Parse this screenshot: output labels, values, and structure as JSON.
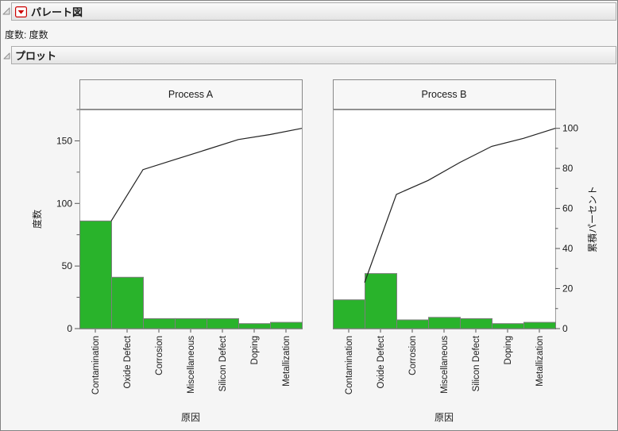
{
  "outline": {
    "pareto": {
      "title": "パレート図"
    },
    "freq_note": "度数: 度数",
    "plot": {
      "title": "プロット"
    }
  },
  "plot_labels": {
    "x_axis_title": "原因",
    "y_left_title": "度数",
    "y_right_title": "累積パーセント"
  },
  "colors": {
    "bar_fill": "#29b32b",
    "bar_stroke": "#7f7f7f",
    "cumulative_line": "#222222",
    "frame_stroke": "#9b9b9b",
    "plot_bg": "#ffffff",
    "title_box_fill": "#f7f7f7",
    "title_box_stroke": "#888888",
    "tick_color": "#555555",
    "text_color": "#1a1a1a",
    "hotspot_red": "#cc0000"
  },
  "percent_scale": {
    "count_at_100pct": 160
  },
  "chart_data": [
    {
      "type": "bar",
      "title": "Process A",
      "categories": [
        "Contamination",
        "Oxide Defect",
        "Corrosion",
        "Miscellaneous",
        "Silicon Defect",
        "Doping",
        "Metallization"
      ],
      "values": [
        86,
        41,
        8,
        8,
        8,
        4,
        5
      ],
      "cumulative_percent": [
        53.75,
        79.38,
        84.38,
        89.38,
        94.38,
        96.88,
        100
      ],
      "xlabel": "原因",
      "ylabel": "度数",
      "y2label": "累積パーセント",
      "ylim": [
        0,
        175
      ],
      "yticks": [
        0,
        50,
        100,
        150
      ],
      "yticks_minor": [
        25,
        75,
        125,
        175
      ],
      "y2lim": [
        0,
        109.4
      ],
      "y2ticks": [
        0,
        20,
        40,
        60,
        80,
        100
      ],
      "y2ticks_minor": [
        10,
        30,
        50,
        70,
        90
      ],
      "grid": false,
      "legend": false
    },
    {
      "type": "bar",
      "title": "Process B",
      "categories": [
        "Contamination",
        "Oxide Defect",
        "Corrosion",
        "Miscellaneous",
        "Silicon Defect",
        "Doping",
        "Metallization"
      ],
      "values": [
        23,
        44,
        7,
        9,
        8,
        4,
        5
      ],
      "cumulative_percent": [
        23,
        67,
        74,
        83,
        91,
        95,
        100
      ],
      "xlabel": "原因",
      "ylabel": "度数",
      "y2label": "累積パーセント",
      "ylim": [
        0,
        175
      ],
      "yticks": [
        0,
        50,
        100,
        150
      ],
      "yticks_minor": [
        25,
        75,
        125,
        175
      ],
      "y2lim": [
        0,
        109.4
      ],
      "y2ticks": [
        0,
        20,
        40,
        60,
        80,
        100
      ],
      "y2ticks_minor": [
        10,
        30,
        50,
        70,
        90
      ],
      "grid": false,
      "legend": false
    }
  ]
}
